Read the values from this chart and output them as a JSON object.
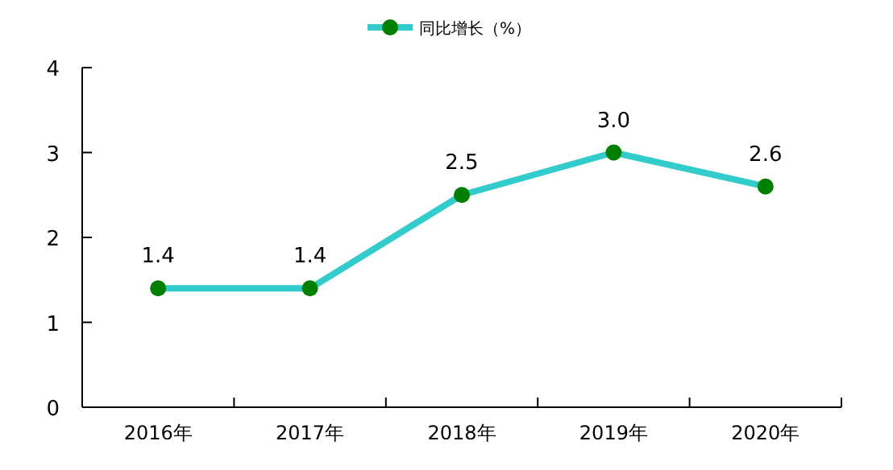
{
  "chart_data": {
    "type": "line",
    "categories": [
      "2016年",
      "2017年",
      "2018年",
      "2019年",
      "2020年"
    ],
    "series": [
      {
        "name": "同比增长（%）",
        "color": "#33cccc",
        "values": [
          1.4,
          1.4,
          2.5,
          3.0,
          2.6
        ],
        "colors": [
          "#008000",
          "#008000",
          "#008000",
          "#008000",
          "#008000"
        ],
        "value_labels": [
          "1.4",
          "1.4",
          "2.5",
          "3.0",
          "2.6"
        ]
      }
    ],
    "ylim": [
      0,
      4
    ],
    "yticks": [
      0,
      1,
      2,
      3,
      4
    ],
    "marker": "circle",
    "line_style": "solid",
    "legend": "top",
    "grid": false
  }
}
